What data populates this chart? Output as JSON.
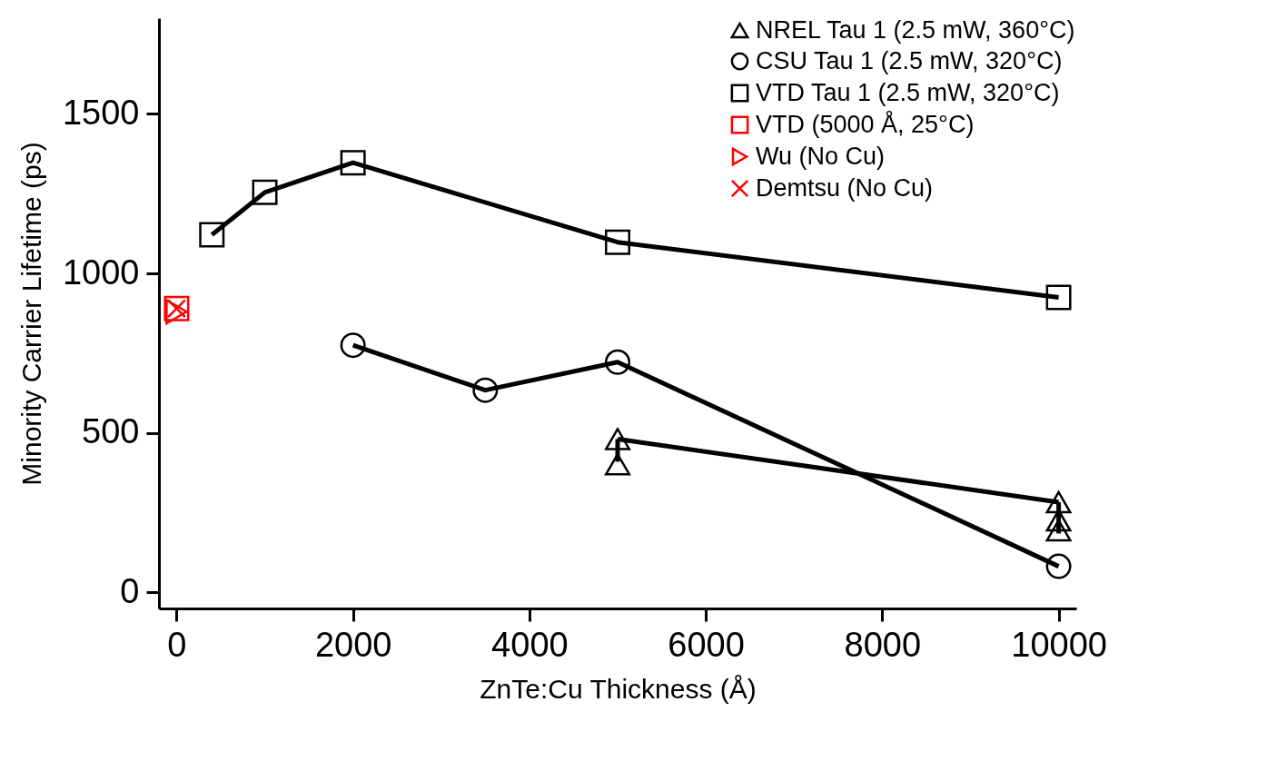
{
  "chart_data": {
    "type": "line",
    "xlabel": "ZnTe:Cu Thickness (Å)",
    "ylabel": "Minority Carrier Lifetime (ps)",
    "xlim": [
      -200,
      10200
    ],
    "xticks": [
      0,
      2000,
      4000,
      6000,
      8000,
      10000
    ],
    "ylim": [
      -50,
      1800
    ],
    "yticks": [
      0,
      500,
      1000,
      1500
    ],
    "grid": false,
    "legend": "top right",
    "line_style": "solid",
    "series": [
      {
        "name": "NREL Tau 1 (2.5 mW, 360°C)",
        "marker": "triangle",
        "color": "#000000",
        "x": [
          5000,
          10000
        ],
        "values": [
          481,
          283
        ],
        "errors": [
          [
            410,
            481
          ],
          [
            185,
            283
          ]
        ]
      },
      {
        "name": "CSU Tau 1 (2.5 mW, 320°C)",
        "marker": "circle",
        "color": "#000000",
        "x": [
          2000,
          3500,
          5000,
          10000
        ],
        "values": [
          775,
          634,
          722,
          82
        ]
      },
      {
        "name": "VTD Tau 1 (2.5 mW, 320°C)",
        "marker": "square",
        "color": "#000000",
        "x": [
          400,
          1000,
          2000,
          5000,
          10000
        ],
        "values": [
          1121,
          1254,
          1347,
          1098,
          925
        ]
      },
      {
        "name": "VTD (5000 Å, 25°C)",
        "type": "scatter",
        "marker": "square",
        "color": "#ff0000",
        "x": [
          0
        ],
        "values": [
          890
        ]
      },
      {
        "name": "Wu (No Cu)",
        "type": "scatter",
        "marker": "triangle-right",
        "color": "#ff0000",
        "x": [
          0
        ],
        "values": [
          880
        ]
      },
      {
        "name": "Demtsu (No Cu)",
        "type": "scatter",
        "marker": "cross",
        "color": "#ff0000",
        "x": [
          0
        ],
        "values": [
          890
        ]
      },
      {
        "type": "scatter",
        "marker": "triangle",
        "color": "#000000",
        "x": [
          5000,
          10000,
          10000
        ],
        "values": [
          402,
          226,
          195
        ]
      }
    ]
  }
}
